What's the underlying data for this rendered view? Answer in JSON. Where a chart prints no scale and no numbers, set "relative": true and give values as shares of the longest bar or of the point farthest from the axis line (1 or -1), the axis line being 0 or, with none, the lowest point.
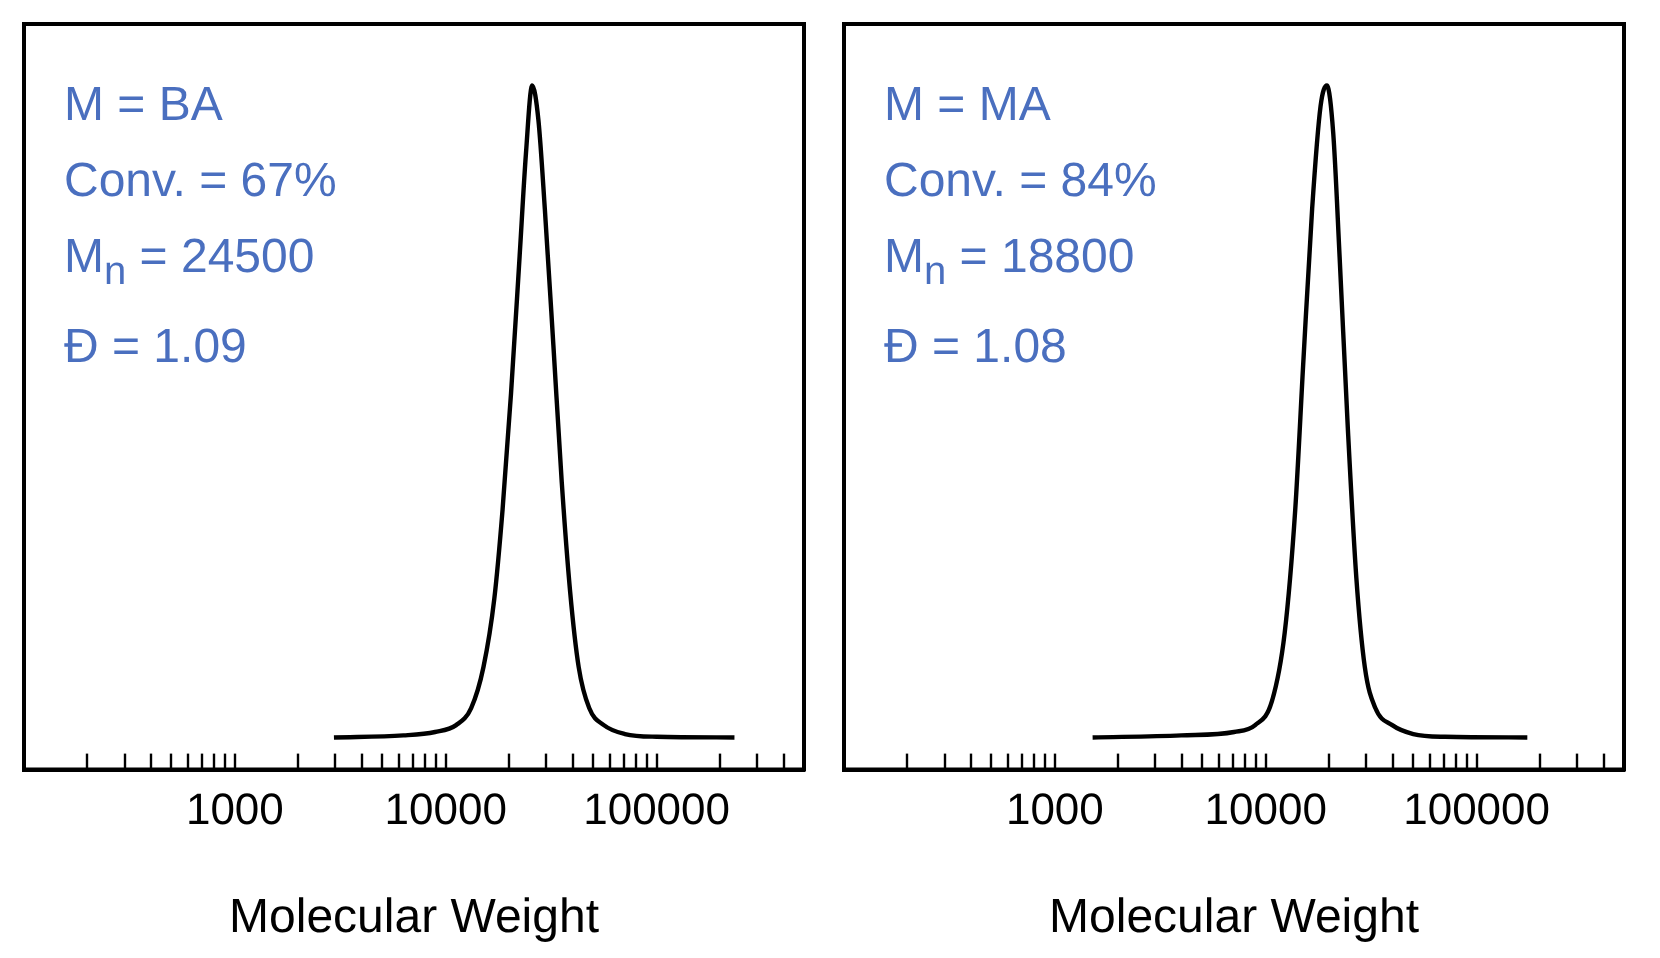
{
  "chart_data": [
    {
      "type": "line",
      "xlabel": "Molecular Weight",
      "relative": true,
      "log": "x",
      "grid": false,
      "legend": false,
      "marker": "none",
      "line_style": "solid",
      "annotations": [
        "M = BA",
        "Conv. = 67%",
        "M$_{n}$ = 24500",
        "Đ = 1.09"
      ],
      "xlim": [
        100,
        500000
      ],
      "xticks": [
        {
          "value": 200,
          "label": null
        },
        {
          "value": 300,
          "label": null
        },
        {
          "value": 400,
          "label": null
        },
        {
          "value": 500,
          "label": null
        },
        {
          "value": 600,
          "label": null
        },
        {
          "value": 700,
          "label": null
        },
        {
          "value": 800,
          "label": null
        },
        {
          "value": 900,
          "label": null
        },
        1000,
        {
          "value": 2000,
          "label": null
        },
        {
          "value": 3000,
          "label": null
        },
        {
          "value": 4000,
          "label": null
        },
        {
          "value": 5000,
          "label": null
        },
        {
          "value": 6000,
          "label": null
        },
        {
          "value": 7000,
          "label": null
        },
        {
          "value": 8000,
          "label": null
        },
        {
          "value": 9000,
          "label": null
        },
        10000,
        {
          "value": 20000,
          "label": null
        },
        {
          "value": 30000,
          "label": null
        },
        {
          "value": 40000,
          "label": null
        },
        {
          "value": 50000,
          "label": null
        },
        {
          "value": 60000,
          "label": null
        },
        {
          "value": 70000,
          "label": null
        },
        {
          "value": 80000,
          "label": null
        },
        {
          "value": 90000,
          "label": null
        },
        100000,
        {
          "value": 200000,
          "label": null
        },
        {
          "value": 300000,
          "label": null
        },
        {
          "value": 400000,
          "label": null
        }
      ],
      "series": [
        {
          "color": "#000000",
          "x": [
            2950,
            6300,
            8900,
            11200,
            13200,
            15100,
            17000,
            18600,
            20400,
            22400,
            24000,
            25700,
            27500,
            29500,
            32400,
            35500,
            38900,
            42700,
            47900,
            56200,
            70800,
            100000,
            234000
          ],
          "values": [
            0.047,
            0.05,
            0.055,
            0.065,
            0.09,
            0.15,
            0.25,
            0.38,
            0.55,
            0.75,
            0.9,
            1.0,
            0.95,
            0.82,
            0.62,
            0.42,
            0.26,
            0.15,
            0.09,
            0.065,
            0.052,
            0.048,
            0.047
          ]
        }
      ]
    },
    {
      "type": "line",
      "xlabel": "Molecular Weight",
      "relative": true,
      "log": "x",
      "grid": false,
      "legend": false,
      "marker": "none",
      "line_style": "solid",
      "annotations": [
        "M = MA",
        "Conv. = 84%",
        "M$_{n}$ = 18800",
        "Đ = 1.08"
      ],
      "xlim": [
        100,
        500000
      ],
      "xticks": [
        {
          "value": 200,
          "label": null
        },
        {
          "value": 300,
          "label": null
        },
        {
          "value": 400,
          "label": null
        },
        {
          "value": 500,
          "label": null
        },
        {
          "value": 600,
          "label": null
        },
        {
          "value": 700,
          "label": null
        },
        {
          "value": 800,
          "label": null
        },
        {
          "value": 900,
          "label": null
        },
        1000,
        {
          "value": 2000,
          "label": null
        },
        {
          "value": 3000,
          "label": null
        },
        {
          "value": 4000,
          "label": null
        },
        {
          "value": 5000,
          "label": null
        },
        {
          "value": 6000,
          "label": null
        },
        {
          "value": 7000,
          "label": null
        },
        {
          "value": 8000,
          "label": null
        },
        {
          "value": 9000,
          "label": null
        },
        10000,
        {
          "value": 20000,
          "label": null
        },
        {
          "value": 30000,
          "label": null
        },
        {
          "value": 40000,
          "label": null
        },
        {
          "value": 50000,
          "label": null
        },
        {
          "value": 60000,
          "label": null
        },
        {
          "value": 70000,
          "label": null
        },
        {
          "value": 80000,
          "label": null
        },
        {
          "value": 90000,
          "label": null
        },
        100000,
        {
          "value": 200000,
          "label": null
        },
        {
          "value": 300000,
          "label": null
        },
        {
          "value": 400000,
          "label": null
        }
      ],
      "series": [
        {
          "color": "#000000",
          "x": [
            1510,
            3980,
            7080,
            8910,
            10700,
            12300,
            13800,
            15100,
            16600,
            18200,
            19500,
            20900,
            22400,
            24500,
            26900,
            29500,
            33100,
            39800,
            50100,
            70800,
            174000
          ],
          "values": [
            0.047,
            0.05,
            0.055,
            0.065,
            0.1,
            0.2,
            0.38,
            0.6,
            0.82,
            0.97,
            1.0,
            0.93,
            0.75,
            0.5,
            0.28,
            0.15,
            0.09,
            0.065,
            0.052,
            0.048,
            0.047
          ]
        }
      ]
    }
  ]
}
